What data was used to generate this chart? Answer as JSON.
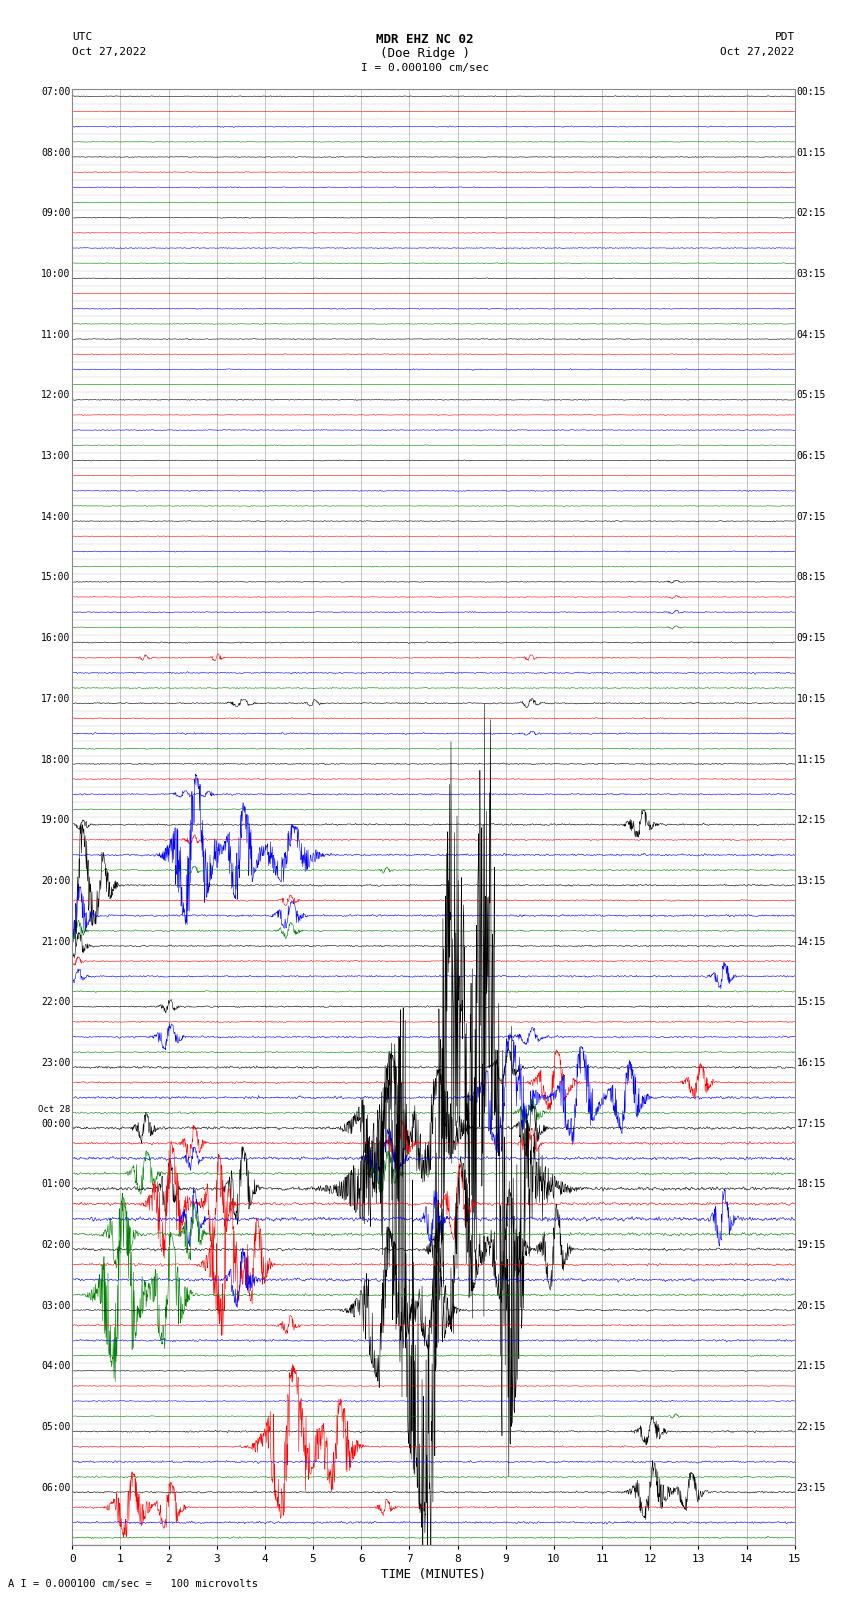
{
  "title_line1": "MDR EHZ NC 02",
  "title_line2": "(Doe Ridge )",
  "scale_label": "I = 0.000100 cm/sec",
  "utc_label": "UTC",
  "utc_date": "Oct 27,2022",
  "pdt_label": "PDT",
  "pdt_date": "Oct 27,2022",
  "xlabel": "TIME (MINUTES)",
  "footer": "A I = 0.000100 cm/sec =   100 microvolts",
  "left_times": [
    "07:00",
    "",
    "",
    "",
    "08:00",
    "",
    "",
    "",
    "09:00",
    "",
    "",
    "",
    "10:00",
    "",
    "",
    "",
    "11:00",
    "",
    "",
    "",
    "12:00",
    "",
    "",
    "",
    "13:00",
    "",
    "",
    "",
    "14:00",
    "",
    "",
    "",
    "15:00",
    "",
    "",
    "",
    "16:00",
    "",
    "",
    "",
    "17:00",
    "",
    "",
    "",
    "18:00",
    "",
    "",
    "",
    "19:00",
    "",
    "",
    "",
    "20:00",
    "",
    "",
    "",
    "21:00",
    "",
    "",
    "",
    "22:00",
    "",
    "",
    "",
    "23:00",
    "",
    "",
    "",
    "Oct28_00:00",
    "",
    "",
    "",
    "01:00",
    "",
    "",
    "",
    "02:00",
    "",
    "",
    "",
    "03:00",
    "",
    "",
    "",
    "04:00",
    "",
    "",
    "",
    "05:00",
    "",
    "",
    "",
    "06:00",
    "",
    "",
    ""
  ],
  "right_times": [
    "00:15",
    "",
    "",
    "",
    "01:15",
    "",
    "",
    "",
    "02:15",
    "",
    "",
    "",
    "03:15",
    "",
    "",
    "",
    "04:15",
    "",
    "",
    "",
    "05:15",
    "",
    "",
    "",
    "06:15",
    "",
    "",
    "",
    "07:15",
    "",
    "",
    "",
    "08:15",
    "",
    "",
    "",
    "09:15",
    "",
    "",
    "",
    "10:15",
    "",
    "",
    "",
    "11:15",
    "",
    "",
    "",
    "12:15",
    "",
    "",
    "",
    "13:15",
    "",
    "",
    "",
    "14:15",
    "",
    "",
    "",
    "15:15",
    "",
    "",
    "",
    "16:15",
    "",
    "",
    "",
    "17:15",
    "",
    "",
    "",
    "18:15",
    "",
    "",
    "",
    "19:15",
    "",
    "",
    "",
    "20:15",
    "",
    "",
    "",
    "21:15",
    "",
    "",
    "",
    "22:15",
    "",
    "",
    "",
    "23:15",
    "",
    "",
    ""
  ],
  "colors": [
    "black",
    "red",
    "blue",
    "green"
  ],
  "num_rows": 96,
  "minutes": 15,
  "bg_color": "white",
  "grid_color": "#888888"
}
